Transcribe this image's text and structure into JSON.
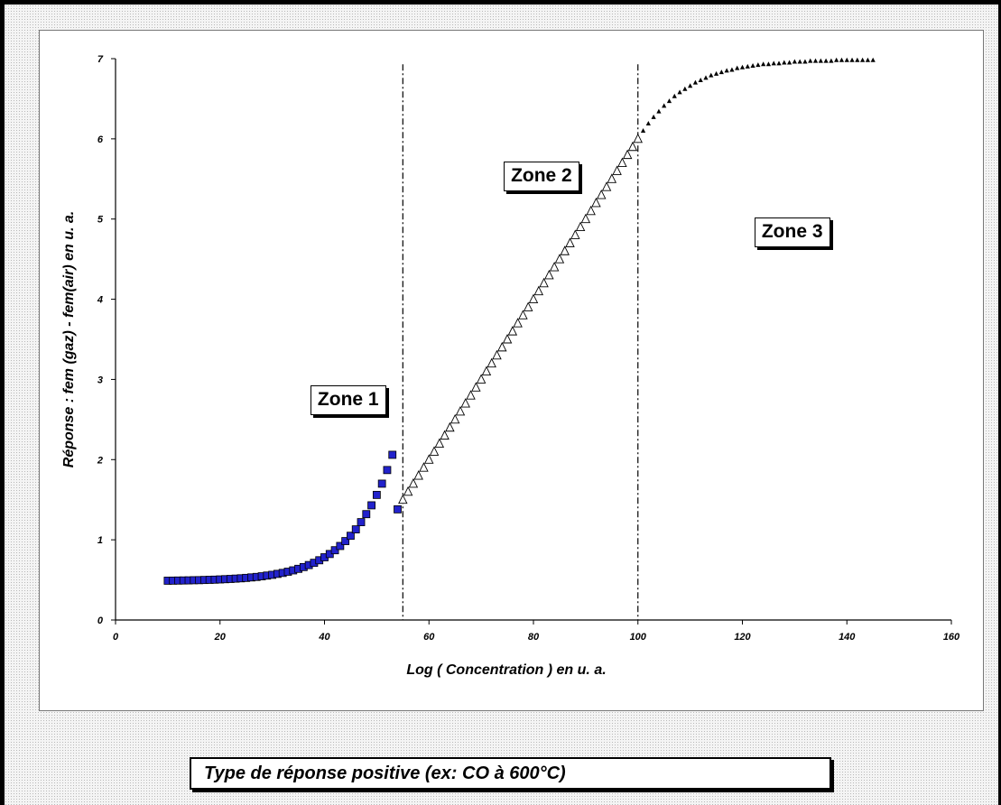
{
  "chart_data": {
    "type": "scatter",
    "title": "",
    "xlabel": "Log ( Concentration ) en u. a.",
    "ylabel": "Réponse : fem (gaz) - fem(air) en u. a.",
    "xlim": [
      0,
      160
    ],
    "ylim": [
      0,
      7
    ],
    "x_ticks": [
      0,
      20,
      40,
      60,
      80,
      100,
      120,
      140,
      160
    ],
    "y_ticks": [
      0,
      1,
      2,
      3,
      4,
      5,
      6,
      7
    ],
    "grid": false,
    "legend": "none",
    "vertical_lines": [
      55,
      100
    ],
    "annotations": [
      {
        "text": "Zone 1",
        "x": 38,
        "y": 2.9
      },
      {
        "text": "Zone 2",
        "x": 75,
        "y": 5.7
      },
      {
        "text": "Zone 3",
        "x": 123,
        "y": 5.0
      }
    ],
    "series": [
      {
        "marker": "square",
        "color": "#2222cc",
        "x": [
          10,
          11,
          12,
          13,
          14,
          15,
          16,
          17,
          18,
          19,
          20,
          21,
          22,
          23,
          24,
          25,
          26,
          27,
          28,
          29,
          30,
          31,
          32,
          33,
          34,
          35,
          36,
          37,
          38,
          39,
          40,
          41,
          42,
          43,
          44,
          45,
          46,
          47,
          48,
          49,
          50,
          51,
          52,
          53,
          54
        ],
        "y": [
          0.49,
          0.491,
          0.492,
          0.493,
          0.494,
          0.496,
          0.497,
          0.499,
          0.501,
          0.503,
          0.506,
          0.509,
          0.512,
          0.516,
          0.52,
          0.525,
          0.531,
          0.537,
          0.545,
          0.554,
          0.563,
          0.575,
          0.587,
          0.602,
          0.619,
          0.638,
          0.66,
          0.685,
          0.713,
          0.745,
          0.782,
          0.823,
          0.87,
          0.923,
          0.984,
          1.05,
          1.13,
          1.22,
          1.32,
          1.43,
          1.56,
          1.7,
          1.87,
          2.06,
          1.38
        ]
      },
      {
        "marker": "open-triangle",
        "color": "#000000",
        "x": [
          55,
          56,
          57,
          58,
          59,
          60,
          61,
          62,
          63,
          64,
          65,
          66,
          67,
          68,
          69,
          70,
          71,
          72,
          73,
          74,
          75,
          76,
          77,
          78,
          79,
          80,
          81,
          82,
          83,
          84,
          85,
          86,
          87,
          88,
          89,
          90,
          91,
          92,
          93,
          94,
          95,
          96,
          97,
          98,
          99,
          100
        ],
        "y": [
          1.5,
          1.6,
          1.7,
          1.8,
          1.9,
          2.0,
          2.1,
          2.2,
          2.3,
          2.4,
          2.5,
          2.6,
          2.7,
          2.8,
          2.9,
          3.0,
          3.1,
          3.2,
          3.3,
          3.4,
          3.5,
          3.6,
          3.7,
          3.8,
          3.9,
          4.0,
          4.1,
          4.2,
          4.3,
          4.4,
          4.5,
          4.6,
          4.7,
          4.8,
          4.9,
          5.0,
          5.1,
          5.2,
          5.3,
          5.4,
          5.5,
          5.6,
          5.7,
          5.8,
          5.9,
          6.0
        ]
      },
      {
        "marker": "filled-triangle",
        "color": "#000000",
        "x": [
          101,
          102,
          103,
          104,
          105,
          106,
          107,
          108,
          109,
          110,
          111,
          112,
          113,
          114,
          115,
          116,
          117,
          118,
          119,
          120,
          121,
          122,
          123,
          124,
          125,
          126,
          127,
          128,
          129,
          130,
          131,
          132,
          133,
          134,
          135,
          136,
          137,
          138,
          139,
          140,
          141,
          142,
          143,
          144,
          145
        ],
        "y": [
          6.1,
          6.19,
          6.27,
          6.34,
          6.41,
          6.47,
          6.53,
          6.58,
          6.62,
          6.66,
          6.7,
          6.73,
          6.76,
          6.79,
          6.81,
          6.83,
          6.85,
          6.86,
          6.88,
          6.89,
          6.9,
          6.91,
          6.92,
          6.93,
          6.93,
          6.94,
          6.94,
          6.95,
          6.95,
          6.96,
          6.96,
          6.96,
          6.97,
          6.97,
          6.97,
          6.97,
          6.97,
          6.98,
          6.98,
          6.98,
          6.98,
          6.98,
          6.98,
          6.98,
          6.98
        ]
      }
    ]
  },
  "caption": "Type de réponse positive   (ex: CO à 600°C)"
}
